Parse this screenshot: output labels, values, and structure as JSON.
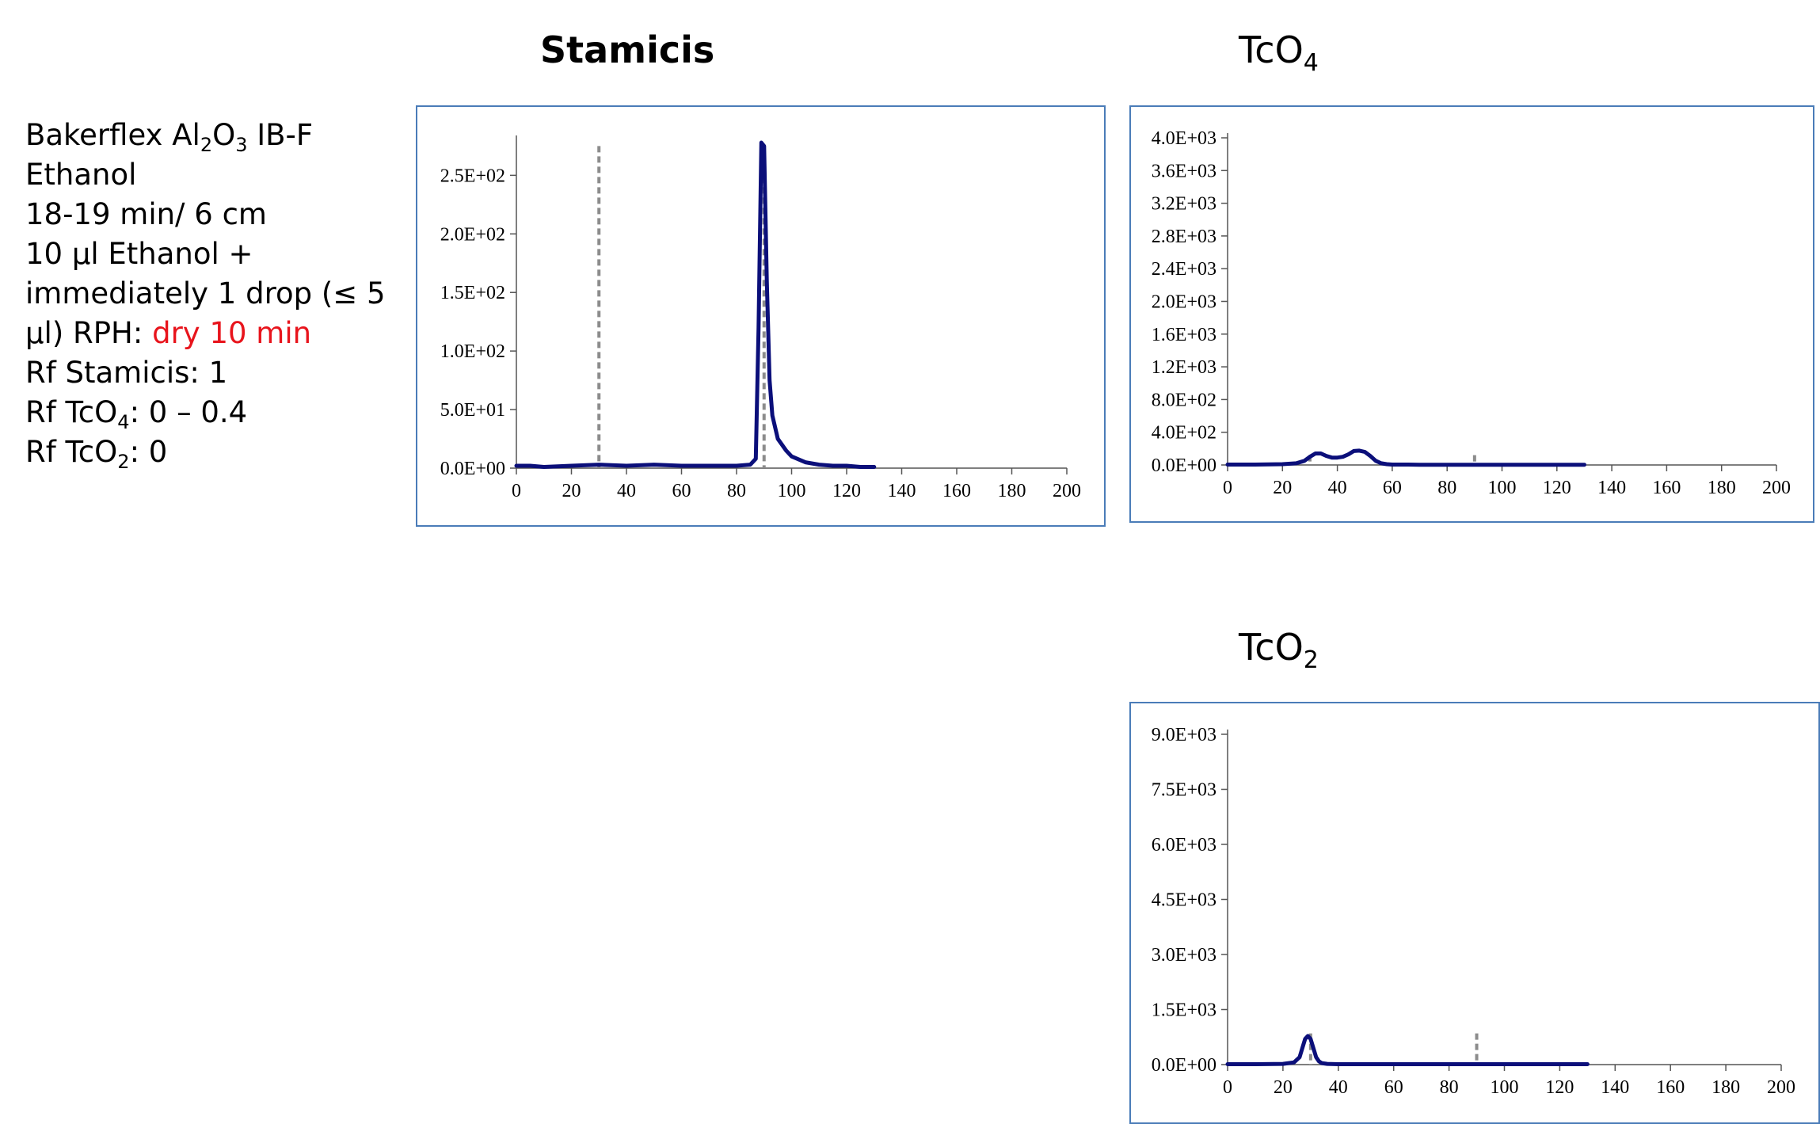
{
  "info": {
    "line1_pre": "Bakerflex Al",
    "line1_sub1": "2",
    "line1_mid": "O",
    "line1_sub2": "3",
    "line1_post": " IB-F",
    "line2": "Ethanol",
    "line3": "18-19 min/ 6 cm",
    "line4": "10 µl Ethanol +",
    "line5": "immediately 1 drop (≤ 5",
    "line6_pre": "µl) RPH:  ",
    "line6_red": "dry 10 min",
    "line7": "Rf Stamicis: 1",
    "line8_pre": "Rf TcO",
    "line8_sub": "4",
    "line8_post": ": 0 – 0.4",
    "line9_pre": "Rf TcO",
    "line9_sub": "2",
    "line9_post": ": 0"
  },
  "colors": {
    "series": "#0b0f7a",
    "marker": "#8c8c8c",
    "frame": "#4a7cb8",
    "highlight": "#e8141c"
  },
  "chart_data": [
    {
      "type": "line",
      "title": "Stamicis",
      "title_sub": "",
      "xlim": [
        0,
        200
      ],
      "ylim": [
        0,
        280
      ],
      "x_ticks": [
        "0",
        "20",
        "40",
        "60",
        "80",
        "100",
        "120",
        "140",
        "160",
        "180",
        "200"
      ],
      "y_ticks": [
        {
          "value": 0,
          "label": "0.0E+00"
        },
        {
          "value": 50,
          "label": "5.0E+01"
        },
        {
          "value": 100,
          "label": "1.0E+02"
        },
        {
          "value": 150,
          "label": "1.5E+02"
        },
        {
          "value": 200,
          "label": "2.0E+02"
        },
        {
          "value": 250,
          "label": "2.5E+02"
        }
      ],
      "markers": [
        {
          "x": 30,
          "y_top": 275
        },
        {
          "x": 90,
          "y_top": 275
        }
      ],
      "series": [
        {
          "x": [
            0,
            5,
            10,
            20,
            30,
            40,
            50,
            60,
            70,
            80,
            85,
            87,
            88,
            89,
            90,
            91,
            92,
            93,
            95,
            98,
            100,
            105,
            110,
            115,
            120,
            125,
            130
          ],
          "y": [
            2,
            2,
            1,
            2,
            3,
            2,
            3,
            2,
            2,
            2,
            3,
            8,
            120,
            278,
            275,
            160,
            75,
            45,
            25,
            15,
            10,
            5,
            3,
            2,
            2,
            1,
            1
          ]
        }
      ]
    },
    {
      "type": "line",
      "title": "TcO",
      "title_sub": "4",
      "xlim": [
        0,
        200
      ],
      "ylim": [
        0,
        4000
      ],
      "x_ticks": [
        "0",
        "20",
        "40",
        "60",
        "80",
        "100",
        "120",
        "140",
        "160",
        "180",
        "200"
      ],
      "y_ticks": [
        {
          "value": 0,
          "label": "0.0E+00"
        },
        {
          "value": 400,
          "label": "4.0E+02"
        },
        {
          "value": 800,
          "label": "8.0E+02"
        },
        {
          "value": 1200,
          "label": "1.2E+03"
        },
        {
          "value": 1600,
          "label": "1.6E+03"
        },
        {
          "value": 2000,
          "label": "2.0E+03"
        },
        {
          "value": 2400,
          "label": "2.4E+03"
        },
        {
          "value": 2800,
          "label": "2.8E+03"
        },
        {
          "value": 3200,
          "label": "3.2E+03"
        },
        {
          "value": 3600,
          "label": "3.6E+03"
        },
        {
          "value": 4000,
          "label": "4.0E+03"
        }
      ],
      "markers": [
        {
          "x": 30,
          "y_top": 120
        },
        {
          "x": 90,
          "y_top": 120
        }
      ],
      "series": [
        {
          "x": [
            0,
            10,
            20,
            25,
            28,
            30,
            32,
            34,
            36,
            38,
            40,
            42,
            44,
            46,
            48,
            50,
            52,
            54,
            56,
            58,
            60,
            65,
            70,
            80,
            90,
            100,
            110,
            120,
            130
          ],
          "y": [
            5,
            5,
            10,
            20,
            50,
            100,
            140,
            140,
            110,
            90,
            90,
            100,
            130,
            170,
            175,
            160,
            110,
            50,
            20,
            10,
            5,
            5,
            3,
            3,
            3,
            3,
            3,
            3,
            3
          ]
        }
      ]
    },
    {
      "type": "line",
      "title": "TcO",
      "title_sub": "2",
      "xlim": [
        0,
        200
      ],
      "ylim": [
        0,
        9000
      ],
      "x_ticks": [
        "0",
        "20",
        "40",
        "60",
        "80",
        "100",
        "120",
        "140",
        "160",
        "180",
        "200"
      ],
      "y_ticks": [
        {
          "value": 0,
          "label": "0.0E+00"
        },
        {
          "value": 1500,
          "label": "1.5E+03"
        },
        {
          "value": 3000,
          "label": "3.0E+03"
        },
        {
          "value": 4500,
          "label": "4.5E+03"
        },
        {
          "value": 6000,
          "label": "6.0E+03"
        },
        {
          "value": 7500,
          "label": "7.5E+03"
        },
        {
          "value": 9000,
          "label": "9.0E+03"
        }
      ],
      "markers": [
        {
          "x": 30,
          "y_top": 850
        },
        {
          "x": 90,
          "y_top": 850
        }
      ],
      "series": [
        {
          "x": [
            0,
            10,
            20,
            24,
            26,
            27,
            28,
            29,
            30,
            31,
            32,
            33,
            34,
            36,
            40,
            50,
            60,
            80,
            100,
            120,
            130
          ],
          "y": [
            10,
            10,
            20,
            60,
            200,
            450,
            700,
            780,
            700,
            450,
            200,
            90,
            40,
            20,
            10,
            10,
            10,
            10,
            10,
            10,
            10
          ]
        }
      ]
    }
  ]
}
